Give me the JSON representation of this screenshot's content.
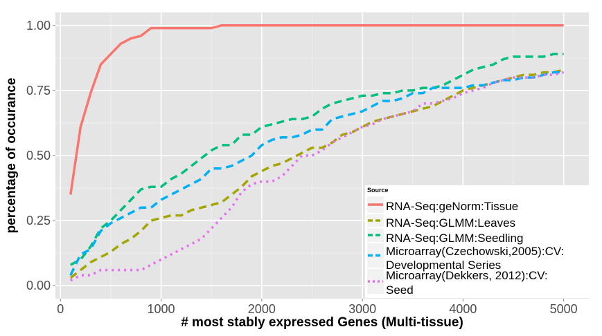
{
  "chart_data": {
    "type": "line",
    "xlabel": "# most stably expressed Genes (Multi-tissue)",
    "ylabel": "percentage of occurance",
    "xlim": [
      -50,
      5250
    ],
    "ylim": [
      -0.05,
      1.05
    ],
    "x_ticks": [
      0,
      1000,
      2000,
      3000,
      4000,
      5000
    ],
    "x_tick_labels": [
      "0",
      "1000",
      "2000",
      "3000",
      "4000",
      "5000"
    ],
    "y_ticks": [
      0,
      0.25,
      0.5,
      0.75,
      1.0
    ],
    "y_tick_labels": [
      "0.00",
      "0.25",
      "0.50",
      "0.75",
      "1.00"
    ],
    "grid": true,
    "legend": {
      "title": "Source",
      "placement": "bottom-right",
      "entries": [
        [
          "RNA-Seq:geNorm:Tissue"
        ],
        [
          "RNA-Seq:GLMM:Leaves"
        ],
        [
          "RNA-Seq:GLMM:Seedling"
        ],
        [
          "Microarray(Czechowski,2005):CV:",
          " Developmental Series"
        ],
        [
          "Microarray(Dekkers, 2012):CV:",
          "Seed"
        ]
      ]
    },
    "series": [
      {
        "name": "RNA-Seq:geNorm:Tissue",
        "color": "#F8766D",
        "dash": "solid",
        "points": [
          [
            100,
            0.35
          ],
          [
            200,
            0.61
          ],
          [
            300,
            0.74
          ],
          [
            400,
            0.85
          ],
          [
            500,
            0.89
          ],
          [
            600,
            0.93
          ],
          [
            700,
            0.95
          ],
          [
            800,
            0.96
          ],
          [
            900,
            0.99
          ],
          [
            1000,
            0.99
          ],
          [
            1100,
            0.99
          ],
          [
            1200,
            0.99
          ],
          [
            1300,
            0.99
          ],
          [
            1400,
            0.99
          ],
          [
            1500,
            0.99
          ],
          [
            1600,
            1.0
          ],
          [
            2000,
            1.0
          ],
          [
            3000,
            1.0
          ],
          [
            4000,
            1.0
          ],
          [
            5000,
            1.0
          ]
        ]
      },
      {
        "name": "RNA-Seq:GLMM:Leaves",
        "color": "#A3A500",
        "dash": "dashed",
        "points": [
          [
            100,
            0.03
          ],
          [
            200,
            0.06
          ],
          [
            300,
            0.09
          ],
          [
            400,
            0.11
          ],
          [
            500,
            0.13
          ],
          [
            600,
            0.16
          ],
          [
            700,
            0.18
          ],
          [
            800,
            0.21
          ],
          [
            900,
            0.25
          ],
          [
            1000,
            0.26
          ],
          [
            1100,
            0.27
          ],
          [
            1200,
            0.27
          ],
          [
            1300,
            0.29
          ],
          [
            1400,
            0.3
          ],
          [
            1500,
            0.31
          ],
          [
            1600,
            0.32
          ],
          [
            1700,
            0.35
          ],
          [
            1800,
            0.38
          ],
          [
            1900,
            0.42
          ],
          [
            2000,
            0.44
          ],
          [
            2100,
            0.46
          ],
          [
            2200,
            0.47
          ],
          [
            2300,
            0.49
          ],
          [
            2400,
            0.51
          ],
          [
            2500,
            0.53
          ],
          [
            2600,
            0.53
          ],
          [
            2700,
            0.55
          ],
          [
            2800,
            0.58
          ],
          [
            2900,
            0.59
          ],
          [
            3000,
            0.61
          ],
          [
            3100,
            0.63
          ],
          [
            3200,
            0.64
          ],
          [
            3300,
            0.65
          ],
          [
            3400,
            0.66
          ],
          [
            3500,
            0.67
          ],
          [
            3600,
            0.68
          ],
          [
            3700,
            0.69
          ],
          [
            3800,
            0.71
          ],
          [
            3900,
            0.73
          ],
          [
            4000,
            0.75
          ],
          [
            4100,
            0.76
          ],
          [
            4200,
            0.77
          ],
          [
            4300,
            0.78
          ],
          [
            4400,
            0.79
          ],
          [
            4500,
            0.8
          ],
          [
            4600,
            0.81
          ],
          [
            4700,
            0.81
          ],
          [
            4800,
            0.82
          ],
          [
            4900,
            0.82
          ],
          [
            5000,
            0.83
          ]
        ]
      },
      {
        "name": "RNA-Seq:GLMM:Seedling",
        "color": "#00BF7D",
        "dash": "dashed",
        "points": [
          [
            100,
            0.08
          ],
          [
            200,
            0.1
          ],
          [
            300,
            0.15
          ],
          [
            400,
            0.22
          ],
          [
            500,
            0.25
          ],
          [
            600,
            0.29
          ],
          [
            700,
            0.33
          ],
          [
            800,
            0.37
          ],
          [
            900,
            0.38
          ],
          [
            1000,
            0.38
          ],
          [
            1100,
            0.41
          ],
          [
            1200,
            0.43
          ],
          [
            1300,
            0.46
          ],
          [
            1400,
            0.49
          ],
          [
            1500,
            0.52
          ],
          [
            1600,
            0.54
          ],
          [
            1700,
            0.54
          ],
          [
            1800,
            0.58
          ],
          [
            1900,
            0.58
          ],
          [
            2000,
            0.61
          ],
          [
            2100,
            0.62
          ],
          [
            2200,
            0.63
          ],
          [
            2300,
            0.64
          ],
          [
            2400,
            0.64
          ],
          [
            2500,
            0.65
          ],
          [
            2600,
            0.68
          ],
          [
            2700,
            0.7
          ],
          [
            2800,
            0.71
          ],
          [
            2900,
            0.72
          ],
          [
            3000,
            0.73
          ],
          [
            3100,
            0.73
          ],
          [
            3200,
            0.74
          ],
          [
            3300,
            0.74
          ],
          [
            3400,
            0.75
          ],
          [
            3500,
            0.75
          ],
          [
            3600,
            0.76
          ],
          [
            3700,
            0.76
          ],
          [
            3800,
            0.77
          ],
          [
            3900,
            0.79
          ],
          [
            4000,
            0.81
          ],
          [
            4100,
            0.83
          ],
          [
            4200,
            0.84
          ],
          [
            4300,
            0.85
          ],
          [
            4400,
            0.87
          ],
          [
            4500,
            0.88
          ],
          [
            4600,
            0.88
          ],
          [
            4700,
            0.88
          ],
          [
            4800,
            0.88
          ],
          [
            4900,
            0.89
          ],
          [
            5000,
            0.89
          ]
        ]
      },
      {
        "name": "Microarray(Czechowski,2005):CV: Developmental Series",
        "color": "#00B0F6",
        "dash": "dashed",
        "points": [
          [
            100,
            0.04
          ],
          [
            200,
            0.12
          ],
          [
            300,
            0.14
          ],
          [
            400,
            0.21
          ],
          [
            500,
            0.24
          ],
          [
            600,
            0.26
          ],
          [
            700,
            0.28
          ],
          [
            800,
            0.3
          ],
          [
            900,
            0.3
          ],
          [
            1000,
            0.33
          ],
          [
            1100,
            0.35
          ],
          [
            1200,
            0.37
          ],
          [
            1300,
            0.39
          ],
          [
            1400,
            0.41
          ],
          [
            1500,
            0.45
          ],
          [
            1600,
            0.45
          ],
          [
            1700,
            0.46
          ],
          [
            1800,
            0.48
          ],
          [
            1900,
            0.5
          ],
          [
            2000,
            0.54
          ],
          [
            2100,
            0.56
          ],
          [
            2200,
            0.57
          ],
          [
            2300,
            0.57
          ],
          [
            2400,
            0.58
          ],
          [
            2500,
            0.6
          ],
          [
            2600,
            0.6
          ],
          [
            2700,
            0.64
          ],
          [
            2800,
            0.65
          ],
          [
            2900,
            0.66
          ],
          [
            3000,
            0.67
          ],
          [
            3100,
            0.69
          ],
          [
            3200,
            0.71
          ],
          [
            3300,
            0.71
          ],
          [
            3400,
            0.72
          ],
          [
            3500,
            0.74
          ],
          [
            3600,
            0.74
          ],
          [
            3700,
            0.76
          ],
          [
            3800,
            0.76
          ],
          [
            3900,
            0.76
          ],
          [
            4000,
            0.76
          ],
          [
            4100,
            0.77
          ],
          [
            4200,
            0.77
          ],
          [
            4300,
            0.78
          ],
          [
            4400,
            0.79
          ],
          [
            4500,
            0.79
          ],
          [
            4600,
            0.8
          ],
          [
            4700,
            0.8
          ],
          [
            4800,
            0.81
          ],
          [
            4900,
            0.82
          ],
          [
            5000,
            0.82
          ]
        ]
      },
      {
        "name": "Microarray(Dekkers, 2012):CV: Seed",
        "color": "#E76BF3",
        "dash": "dotted",
        "points": [
          [
            100,
            0.02
          ],
          [
            200,
            0.04
          ],
          [
            300,
            0.04
          ],
          [
            400,
            0.06
          ],
          [
            500,
            0.06
          ],
          [
            600,
            0.06
          ],
          [
            700,
            0.06
          ],
          [
            800,
            0.06
          ],
          [
            900,
            0.08
          ],
          [
            1000,
            0.1
          ],
          [
            1100,
            0.12
          ],
          [
            1200,
            0.14
          ],
          [
            1300,
            0.16
          ],
          [
            1400,
            0.18
          ],
          [
            1500,
            0.22
          ],
          [
            1600,
            0.26
          ],
          [
            1700,
            0.3
          ],
          [
            1800,
            0.36
          ],
          [
            1900,
            0.39
          ],
          [
            2000,
            0.4
          ],
          [
            2100,
            0.4
          ],
          [
            2200,
            0.42
          ],
          [
            2300,
            0.46
          ],
          [
            2400,
            0.5
          ],
          [
            2500,
            0.5
          ],
          [
            2600,
            0.52
          ],
          [
            2700,
            0.55
          ],
          [
            2800,
            0.57
          ],
          [
            2900,
            0.59
          ],
          [
            3000,
            0.61
          ],
          [
            3100,
            0.62
          ],
          [
            3200,
            0.64
          ],
          [
            3300,
            0.65
          ],
          [
            3400,
            0.66
          ],
          [
            3500,
            0.67
          ],
          [
            3600,
            0.7
          ],
          [
            3700,
            0.7
          ],
          [
            3800,
            0.71
          ],
          [
            3900,
            0.72
          ],
          [
            4000,
            0.74
          ],
          [
            4100,
            0.75
          ],
          [
            4200,
            0.76
          ],
          [
            4300,
            0.78
          ],
          [
            4400,
            0.79
          ],
          [
            4500,
            0.8
          ],
          [
            4600,
            0.8
          ],
          [
            4700,
            0.8
          ],
          [
            4800,
            0.81
          ],
          [
            4900,
            0.81
          ],
          [
            5000,
            0.82
          ]
        ]
      }
    ]
  }
}
